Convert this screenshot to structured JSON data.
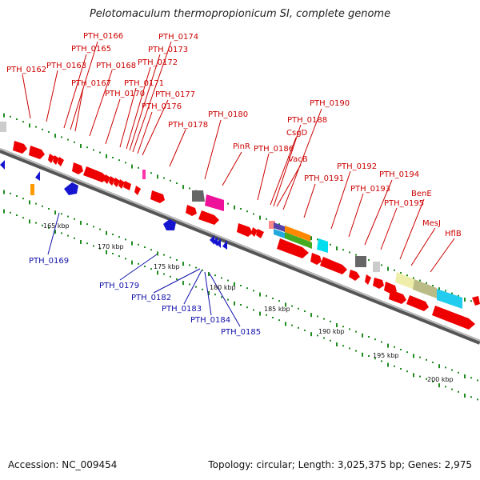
{
  "title": "Pelotomaculum thermopropionicum SI, complete genome",
  "footer": {
    "accession": "Accession: NC_009454",
    "topology": "Topology: circular; Length: 3,025,375 bp; Genes: 2,975"
  },
  "colors": {
    "forward_gene": "#ee0000",
    "reverse_gene": "#1515d0",
    "label_forward": "#cc0000",
    "label_reverse": "#1010aa",
    "tick": "#228b22",
    "backbone": "#808080"
  },
  "scale_labels": [
    "165 kbp",
    "170 kbp",
    "175 kbp",
    "180 kbp",
    "185 kbp",
    "190 kbp",
    "195 kbp",
    "200 kbp"
  ],
  "forward_labels": [
    "PTH_0162",
    "PTH_0163",
    "PTH_0165",
    "PTH_0166",
    "PTH_0167",
    "PTH_0168",
    "PTH_0170",
    "PTH_0171",
    "PTH_0172",
    "PTH_0173",
    "PTH_0174",
    "PTH_0176",
    "PTH_0177",
    "PTH_0178",
    "PTH_0180",
    "PinR",
    "PTH_0186",
    "CsgD",
    "VacB",
    "PTH_0188",
    "PTH_0190",
    "PTH_0191",
    "PTH_0192",
    "PTH_0193",
    "PTH_0194",
    "PTH_0195",
    "BenE",
    "MesJ",
    "HflB"
  ],
  "reverse_labels": [
    "PTH_0169",
    "PTH_0179",
    "PTH_0182",
    "PTH_0183",
    "PTH_0184",
    "PTH_0185"
  ]
}
